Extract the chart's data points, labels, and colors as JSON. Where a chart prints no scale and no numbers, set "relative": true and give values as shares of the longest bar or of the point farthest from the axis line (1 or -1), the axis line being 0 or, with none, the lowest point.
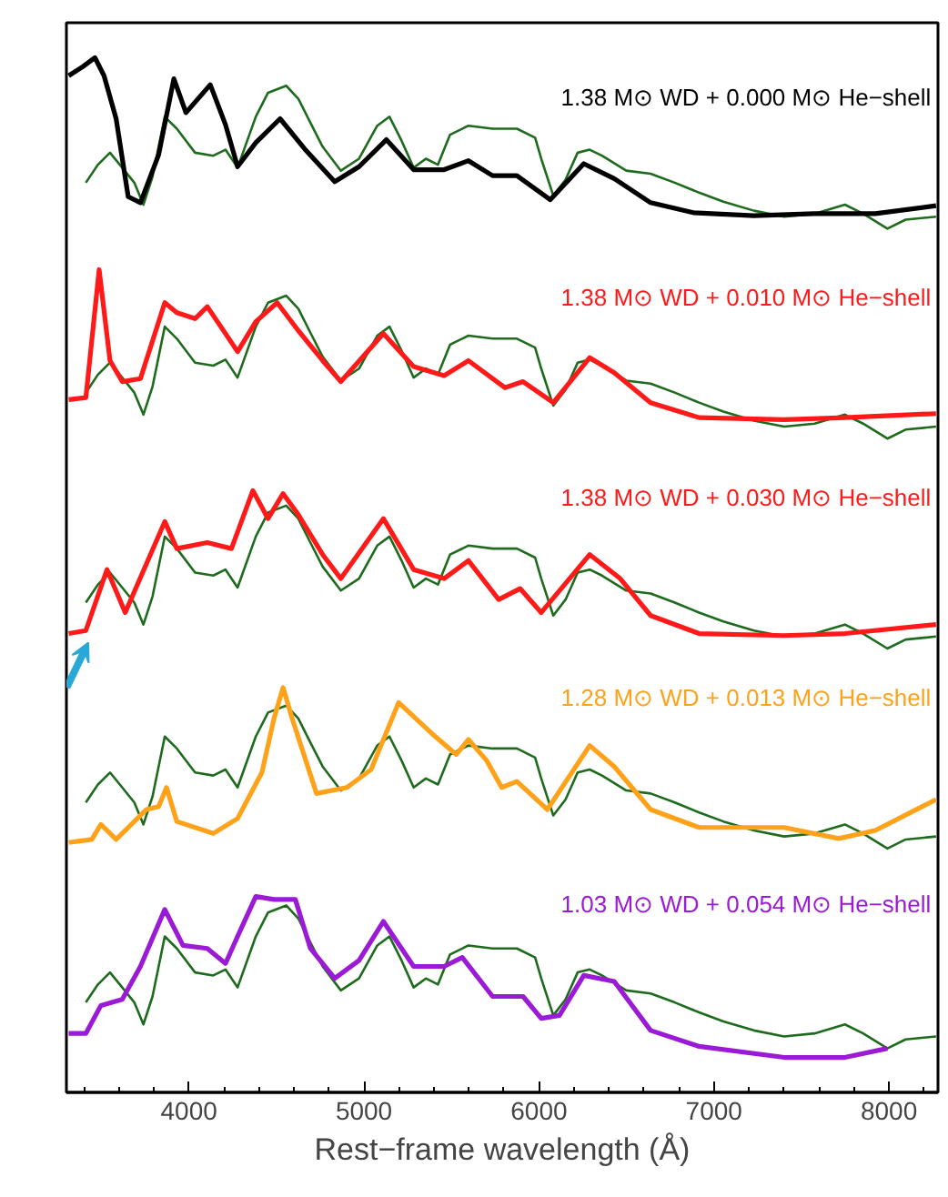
{
  "chart_data": {
    "type": "line",
    "xlabel": "Rest−frame wavelength (Å)",
    "relative": true,
    "xlim": [
      3300,
      8280
    ],
    "xticks": [
      4000,
      5000,
      6000,
      7000,
      8000
    ],
    "grid": false,
    "series": [
      {
        "color": "#1e6b1e",
        "x": [
          3411,
          3480,
          3549,
          3619,
          3688,
          3740,
          3792,
          3862,
          3931,
          4035,
          4139,
          4209,
          4278,
          4382,
          4452,
          4556,
          4625,
          4694,
          4764,
          4868,
          4972,
          5076,
          5146,
          5215,
          5284,
          5354,
          5423,
          5492,
          5597,
          5735,
          5874,
          5978,
          6013,
          6082,
          6152,
          6221,
          6290,
          6360,
          6499,
          6638,
          6776,
          6915,
          7054,
          7228,
          7401,
          7575,
          7748,
          7852,
          7991,
          8095,
          8269
        ],
        "values": [
          0.875,
          0.893,
          0.905,
          0.89,
          0.875,
          0.853,
          0.881,
          0.941,
          0.929,
          0.905,
          0.902,
          0.908,
          0.89,
          0.941,
          0.965,
          0.972,
          0.959,
          0.935,
          0.911,
          0.887,
          0.899,
          0.932,
          0.941,
          0.917,
          0.89,
          0.899,
          0.893,
          0.923,
          0.932,
          0.929,
          0.929,
          0.92,
          0.899,
          0.862,
          0.878,
          0.905,
          0.908,
          0.902,
          0.887,
          0.884,
          0.875,
          0.865,
          0.856,
          0.847,
          0.841,
          0.844,
          0.853,
          0.844,
          0.829,
          0.838,
          0.841
        ]
      },
      {
        "name": "1.38 M⊙ WD + 0.000 M⊙ He−shell",
        "color": "#000000",
        "x": [
          3313,
          3393,
          3463,
          3515,
          3584,
          3653,
          3723,
          3827,
          3914,
          3983,
          4122,
          4209,
          4278,
          4382,
          4521,
          4660,
          4833,
          4972,
          5128,
          5284,
          5458,
          5597,
          5735,
          5874,
          6065,
          6256,
          6430,
          6638,
          6881,
          7228,
          7575,
          7922,
          8269
        ],
        "values": [
          0.982,
          0.991,
          1.0,
          0.982,
          0.939,
          0.861,
          0.855,
          0.903,
          0.979,
          0.945,
          0.973,
          0.933,
          0.891,
          0.915,
          0.939,
          0.909,
          0.876,
          0.891,
          0.918,
          0.888,
          0.888,
          0.897,
          0.882,
          0.882,
          0.858,
          0.894,
          0.879,
          0.855,
          0.845,
          0.842,
          0.844,
          0.844,
          0.852
        ]
      },
      {
        "color": "#1e6b1e",
        "x": [
          3411,
          3480,
          3549,
          3619,
          3688,
          3740,
          3792,
          3862,
          3931,
          4035,
          4139,
          4209,
          4278,
          4382,
          4452,
          4556,
          4625,
          4694,
          4764,
          4868,
          4972,
          5076,
          5146,
          5215,
          5284,
          5354,
          5423,
          5492,
          5597,
          5735,
          5874,
          5978,
          6013,
          6082,
          6152,
          6221,
          6290,
          6360,
          6499,
          6638,
          6776,
          6915,
          7054,
          7228,
          7401,
          7575,
          7748,
          7852,
          7991,
          8095,
          8269
        ],
        "values": [
          0.665,
          0.683,
          0.695,
          0.68,
          0.665,
          0.643,
          0.671,
          0.731,
          0.719,
          0.695,
          0.692,
          0.698,
          0.68,
          0.731,
          0.755,
          0.762,
          0.749,
          0.725,
          0.701,
          0.677,
          0.689,
          0.722,
          0.731,
          0.707,
          0.68,
          0.689,
          0.683,
          0.713,
          0.722,
          0.719,
          0.719,
          0.71,
          0.689,
          0.652,
          0.668,
          0.695,
          0.698,
          0.692,
          0.677,
          0.674,
          0.665,
          0.655,
          0.646,
          0.637,
          0.631,
          0.634,
          0.643,
          0.634,
          0.619,
          0.628,
          0.631
        ]
      },
      {
        "name": "1.38 M⊙ WD + 0.010 M⊙ He−shell",
        "color": "#ff1a1a",
        "x": [
          3313,
          3411,
          3487,
          3549,
          3619,
          3723,
          3862,
          3931,
          4035,
          4105,
          4278,
          4382,
          4504,
          4625,
          4764,
          4868,
          5111,
          5284,
          5458,
          5597,
          5805,
          5909,
          6082,
          6290,
          6430,
          6638,
          6915,
          7401,
          7748,
          8269
        ],
        "values": [
          0.658,
          0.66,
          0.788,
          0.697,
          0.676,
          0.679,
          0.755,
          0.745,
          0.739,
          0.751,
          0.706,
          0.736,
          0.755,
          0.727,
          0.697,
          0.676,
          0.724,
          0.691,
          0.682,
          0.697,
          0.67,
          0.676,
          0.655,
          0.7,
          0.685,
          0.655,
          0.64,
          0.638,
          0.64,
          0.644
        ]
      },
      {
        "color": "#1e6b1e",
        "x": [
          3411,
          3480,
          3549,
          3619,
          3688,
          3740,
          3792,
          3862,
          3931,
          4035,
          4139,
          4209,
          4278,
          4382,
          4452,
          4556,
          4625,
          4694,
          4764,
          4868,
          4972,
          5076,
          5146,
          5215,
          5284,
          5354,
          5423,
          5492,
          5597,
          5735,
          5874,
          5978,
          6013,
          6082,
          6152,
          6221,
          6290,
          6360,
          6499,
          6638,
          6776,
          6915,
          7054,
          7228,
          7401,
          7575,
          7748,
          7852,
          7991,
          8095,
          8269
        ],
        "values": [
          0.455,
          0.473,
          0.485,
          0.47,
          0.455,
          0.433,
          0.461,
          0.521,
          0.509,
          0.485,
          0.482,
          0.488,
          0.47,
          0.521,
          0.545,
          0.552,
          0.539,
          0.515,
          0.491,
          0.467,
          0.479,
          0.512,
          0.521,
          0.497,
          0.47,
          0.479,
          0.473,
          0.503,
          0.512,
          0.509,
          0.509,
          0.5,
          0.479,
          0.442,
          0.458,
          0.485,
          0.488,
          0.482,
          0.467,
          0.464,
          0.455,
          0.445,
          0.436,
          0.427,
          0.421,
          0.424,
          0.433,
          0.424,
          0.409,
          0.418,
          0.421
        ]
      },
      {
        "name": "1.38 M⊙ WD + 0.030 M⊙ He−shell",
        "color": "#ff1a1a",
        "x": [
          3313,
          3411,
          3532,
          3636,
          3862,
          3931,
          4105,
          4243,
          4365,
          4452,
          4538,
          4625,
          4764,
          4868,
          5111,
          5284,
          5458,
          5597,
          5770,
          5892,
          6013,
          6290,
          6464,
          6638,
          6915,
          7401,
          7748,
          8269
        ],
        "values": [
          0.424,
          0.427,
          0.488,
          0.445,
          0.536,
          0.509,
          0.515,
          0.509,
          0.567,
          0.539,
          0.564,
          0.543,
          0.503,
          0.479,
          0.539,
          0.488,
          0.479,
          0.497,
          0.458,
          0.469,
          0.445,
          0.503,
          0.479,
          0.442,
          0.424,
          0.422,
          0.424,
          0.433
        ]
      },
      {
        "color": "#1e6b1e",
        "x": [
          3411,
          3480,
          3549,
          3619,
          3688,
          3740,
          3792,
          3862,
          3931,
          4035,
          4139,
          4209,
          4278,
          4382,
          4452,
          4556,
          4625,
          4694,
          4764,
          4868,
          4972,
          5076,
          5146,
          5215,
          5284,
          5354,
          5423,
          5492,
          5597,
          5735,
          5874,
          5978,
          6013,
          6082,
          6152,
          6221,
          6290,
          6360,
          6499,
          6638,
          6776,
          6915,
          7054,
          7228,
          7401,
          7575,
          7748,
          7852,
          7991,
          8095,
          8269
        ],
        "values": [
          0.255,
          0.273,
          0.285,
          0.27,
          0.255,
          0.233,
          0.261,
          0.321,
          0.309,
          0.285,
          0.282,
          0.288,
          0.27,
          0.321,
          0.345,
          0.352,
          0.339,
          0.315,
          0.291,
          0.267,
          0.279,
          0.312,
          0.321,
          0.297,
          0.27,
          0.279,
          0.273,
          0.303,
          0.312,
          0.309,
          0.309,
          0.3,
          0.279,
          0.242,
          0.258,
          0.285,
          0.288,
          0.282,
          0.267,
          0.264,
          0.255,
          0.245,
          0.236,
          0.227,
          0.221,
          0.224,
          0.233,
          0.224,
          0.209,
          0.218,
          0.221
        ]
      },
      {
        "name": "1.28 M⊙ WD + 0.013 M⊙ He−shell",
        "color": "#ffa21a",
        "x": [
          3313,
          3445,
          3497,
          3584,
          3758,
          3827,
          3872,
          3931,
          4139,
          4278,
          4417,
          4486,
          4538,
          4590,
          4729,
          4903,
          5041,
          5198,
          5388,
          5527,
          5597,
          5701,
          5787,
          5874,
          6048,
          6290,
          6430,
          6638,
          6915,
          7401,
          7713,
          7922,
          8269
        ],
        "values": [
          0.215,
          0.218,
          0.233,
          0.218,
          0.248,
          0.251,
          0.27,
          0.236,
          0.224,
          0.239,
          0.285,
          0.339,
          0.37,
          0.339,
          0.264,
          0.27,
          0.288,
          0.355,
          0.324,
          0.303,
          0.318,
          0.297,
          0.27,
          0.276,
          0.248,
          0.312,
          0.291,
          0.248,
          0.23,
          0.23,
          0.219,
          0.227,
          0.258
        ]
      },
      {
        "color": "#1e6b1e",
        "x": [
          3411,
          3480,
          3549,
          3619,
          3688,
          3740,
          3792,
          3862,
          3931,
          4035,
          4139,
          4209,
          4278,
          4382,
          4452,
          4556,
          4625,
          4694,
          4764,
          4868,
          4972,
          5076,
          5146,
          5215,
          5284,
          5354,
          5423,
          5492,
          5597,
          5735,
          5874,
          5978,
          6013,
          6082,
          6152,
          6221,
          6290,
          6360,
          6499,
          6638,
          6776,
          6915,
          7054,
          7228,
          7401,
          7575,
          7748,
          7852,
          7991,
          8095,
          8269
        ],
        "values": [
          0.055,
          0.073,
          0.085,
          0.07,
          0.055,
          0.033,
          0.061,
          0.121,
          0.109,
          0.085,
          0.082,
          0.088,
          0.07,
          0.121,
          0.145,
          0.152,
          0.139,
          0.115,
          0.091,
          0.067,
          0.079,
          0.112,
          0.121,
          0.097,
          0.07,
          0.079,
          0.073,
          0.103,
          0.112,
          0.109,
          0.109,
          0.1,
          0.079,
          0.042,
          0.058,
          0.085,
          0.088,
          0.082,
          0.067,
          0.064,
          0.055,
          0.045,
          0.036,
          0.027,
          0.021,
          0.024,
          0.033,
          0.024,
          0.009,
          0.018,
          0.021
        ]
      },
      {
        "name": "1.03 M⊙ WD + 0.054 M⊙ He−shell",
        "color": "#9b1ad6",
        "x": [
          3313,
          3411,
          3497,
          3619,
          3723,
          3862,
          3966,
          4105,
          4209,
          4278,
          4382,
          4486,
          4608,
          4694,
          4833,
          4972,
          5111,
          5284,
          5458,
          5562,
          5735,
          5909,
          6013,
          6117,
          6256,
          6430,
          6638,
          6915,
          7401,
          7748,
          7991
        ],
        "values": [
          0.024,
          0.024,
          0.052,
          0.058,
          0.091,
          0.148,
          0.112,
          0.109,
          0.094,
          0.121,
          0.161,
          0.158,
          0.158,
          0.109,
          0.079,
          0.097,
          0.136,
          0.091,
          0.091,
          0.1,
          0.061,
          0.061,
          0.039,
          0.042,
          0.082,
          0.076,
          0.027,
          0.011,
          0.0,
          0.0,
          0.009
        ]
      }
    ]
  }
}
